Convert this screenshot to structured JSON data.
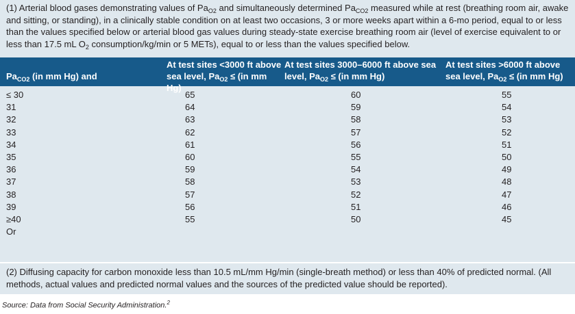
{
  "note1": {
    "p1": "(1) Arterial blood gases demonstrating values of Pa",
    "p1_sub": "O2",
    "p2": " and simultaneously determined Pa",
    "p2_sub": "CO2",
    "p3": " measured while at rest (breathing room air, awake and sitting, or standing), in a clinically stable condition on at least two occasions, 3 or more weeks apart within a 6-mo period, equal to or less than the values specified below or arterial blood gas values during steady-state exercise breathing room air (level of exercise equivalent to or less than 17.5 mL O",
    "p3_sub": "2",
    "p4": " consumption/kg/min or 5 METs), equal to or less than the values specified below."
  },
  "headers": {
    "col0_pre": "Pa",
    "col0_sub": "CO2",
    "col0_post": " (in mm Hg) and",
    "col1_text": "At test sites <3000 ft above sea level, Pa",
    "col1_sub": "O2",
    "col1_post": " ≤ (in mm Hg)",
    "col2_text": "At test sites 3000–6000 ft above sea level, Pa",
    "col2_sub": "O2",
    "col2_post": " ≤ (in mm Hg)",
    "col3_text": "At test sites >6000 ft above sea level, Pa",
    "col3_sub": "O2",
    "col3_post": " ≤ (in mm Hg)"
  },
  "rows": [
    {
      "paco2": "≤ 30",
      "low": "65",
      "mid": "60",
      "high": "55"
    },
    {
      "paco2": "31",
      "low": "64",
      "mid": "59",
      "high": "54"
    },
    {
      "paco2": "32",
      "low": "63",
      "mid": "58",
      "high": "53"
    },
    {
      "paco2": "33",
      "low": "62",
      "mid": "57",
      "high": "52"
    },
    {
      "paco2": "34",
      "low": "61",
      "mid": "56",
      "high": "51"
    },
    {
      "paco2": "35",
      "low": "60",
      "mid": "55",
      "high": "50"
    },
    {
      "paco2": "36",
      "low": "59",
      "mid": "54",
      "high": "49"
    },
    {
      "paco2": "37",
      "low": "58",
      "mid": "53",
      "high": "48"
    },
    {
      "paco2": "38",
      "low": "57",
      "mid": "52",
      "high": "47"
    },
    {
      "paco2": "39",
      "low": "56",
      "mid": "51",
      "high": "46"
    },
    {
      "paco2": "≥40",
      "low": "55",
      "mid": "50",
      "high": "45"
    },
    {
      "paco2": "Or",
      "low": "",
      "mid": "",
      "high": ""
    }
  ],
  "note2": "(2) Diffusing capacity for carbon monoxide less than 10.5 mL/mm Hg/min (single-breath method) or less than 40% of predicted normal. (All methods, actual values and predicted normal values and the sources of the predicted value should be reported).",
  "source": {
    "text": "Source: Data from Social Security Administration.",
    "ref": "2"
  },
  "colors": {
    "header_bg": "#175a8a",
    "table_bg": "#dfe8ee",
    "text": "#231f20"
  }
}
